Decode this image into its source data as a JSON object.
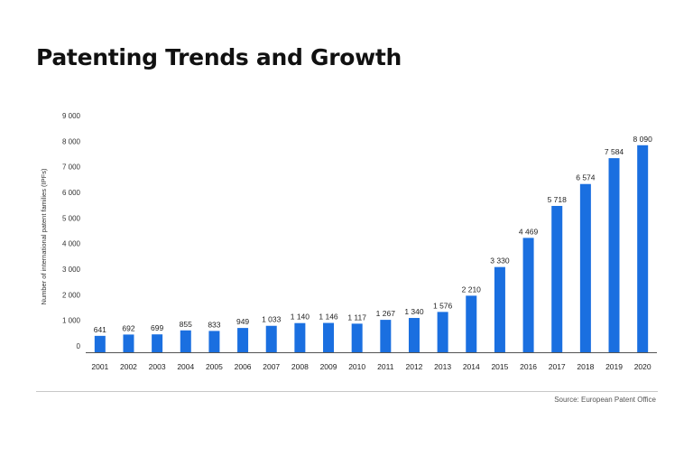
{
  "title": "Patenting Trends and Growth",
  "source": "Source: European Patent Office",
  "colors": {
    "bar": "#1a6fe0",
    "axis": "#555555",
    "text": "#333333"
  },
  "chart_data": {
    "type": "bar",
    "title": "Patenting Trends and Growth",
    "ylabel": "Number of international patent families (IPFs)",
    "xlabel": "",
    "ylim": [
      0,
      9000
    ],
    "y_ticks": [
      0,
      1000,
      2000,
      3000,
      4000,
      5000,
      6000,
      7000,
      8000,
      9000
    ],
    "y_tick_labels": [
      "0",
      "1 000",
      "2 000",
      "3 000",
      "4 000",
      "5 000",
      "6 000",
      "7 000",
      "8 000",
      "9 000"
    ],
    "categories": [
      "2001",
      "2002",
      "2003",
      "2004",
      "2005",
      "2006",
      "2007",
      "2008",
      "2009",
      "2010",
      "2011",
      "2012",
      "2013",
      "2014",
      "2015",
      "2016",
      "2017",
      "2018",
      "2019",
      "2020"
    ],
    "values": [
      641,
      692,
      699,
      855,
      833,
      949,
      1033,
      1140,
      1146,
      1117,
      1267,
      1340,
      1576,
      2210,
      3330,
      4469,
      5718,
      6574,
      7584,
      8090
    ],
    "data_labels": [
      "641",
      "692",
      "699",
      "855",
      "833",
      "949",
      "1 033",
      "1 140",
      "1 146",
      "1 117",
      "1 267",
      "1 340",
      "1 576",
      "2 210",
      "3 330",
      "4 469",
      "5 718",
      "6 574",
      "7 584",
      "8 090"
    ],
    "grid": false,
    "legend": "none"
  }
}
